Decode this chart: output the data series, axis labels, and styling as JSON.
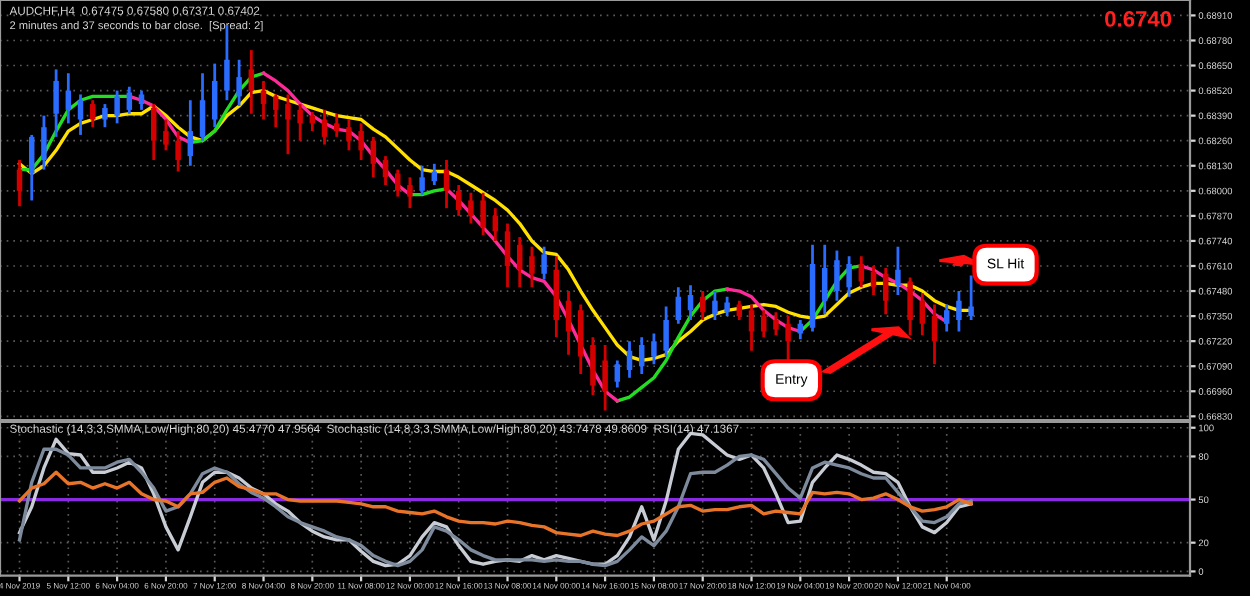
{
  "chart_data": [
    {
      "type": "candlestick",
      "title": "AUDCHF,H4  0.67475 0.67580 0.67371 0.67402",
      "subtitle": "2 minutes and 37 seconds to bar close.  [Spread: 2]",
      "annotations": [
        "0.6740",
        "Entry",
        "SL Hit"
      ],
      "categories": [
        null,
        null,
        null,
        null,
        null,
        null,
        null,
        null,
        null,
        null,
        null,
        null,
        null,
        null,
        null,
        null,
        null,
        null,
        null,
        null,
        null,
        null,
        null,
        null,
        null,
        null,
        null,
        null,
        null,
        null,
        null,
        null,
        null,
        null,
        null,
        null,
        null,
        null,
        null,
        null,
        null,
        null,
        null,
        null,
        null,
        null,
        null,
        null,
        null,
        null,
        null,
        null,
        null,
        null,
        null,
        null,
        null,
        null,
        null,
        null,
        null,
        null,
        null,
        null,
        null,
        null,
        null,
        null,
        null,
        null,
        null,
        null,
        null,
        null,
        null,
        null,
        null,
        null,
        null
      ],
      "ohlc": [
        [
          0.6811,
          0.6816,
          0.6792,
          0.68
        ],
        [
          0.6809,
          0.6829,
          0.6795,
          0.6828
        ],
        [
          0.6816,
          0.6839,
          0.6811,
          0.6833
        ],
        [
          0.684,
          0.6863,
          0.6828,
          0.6857
        ],
        [
          0.6842,
          0.6861,
          0.6835,
          0.6852
        ],
        [
          0.6837,
          0.685,
          0.6829,
          0.6847
        ],
        [
          0.6845,
          0.6847,
          0.6833,
          0.6837
        ],
        [
          0.6837,
          0.6845,
          0.6833,
          0.6843
        ],
        [
          0.6839,
          0.6852,
          0.6835,
          0.6849
        ],
        [
          0.6842,
          0.6854,
          0.684,
          0.6851
        ],
        [
          0.6845,
          0.6852,
          0.6842,
          0.685
        ],
        [
          0.6843,
          0.6845,
          0.6816,
          0.6826
        ],
        [
          0.6831,
          0.6837,
          0.6821,
          0.6824
        ],
        [
          0.6826,
          0.6831,
          0.681,
          0.6816
        ],
        [
          0.6818,
          0.6847,
          0.6813,
          0.6831
        ],
        [
          0.6828,
          0.6861,
          0.6826,
          0.6847
        ],
        [
          0.6837,
          0.6866,
          0.6833,
          0.6857
        ],
        [
          0.6852,
          0.6886,
          0.6847,
          0.6868
        ],
        [
          0.6849,
          0.6868,
          0.6844,
          0.6859
        ],
        [
          0.6863,
          0.6873,
          0.684,
          0.6852
        ],
        [
          0.6852,
          0.6857,
          0.6837,
          0.6845
        ],
        [
          0.6849,
          0.685,
          0.6833,
          0.6842
        ],
        [
          0.6845,
          0.685,
          0.6819,
          0.6837
        ],
        [
          0.6842,
          0.6845,
          0.6826,
          0.6835
        ],
        [
          0.6839,
          0.6841,
          0.6831,
          0.6835
        ],
        [
          0.6837,
          0.6842,
          0.6824,
          0.6828
        ],
        [
          0.6835,
          0.684,
          0.6828,
          0.6831
        ],
        [
          0.6833,
          0.6837,
          0.6821,
          0.6826
        ],
        [
          0.6831,
          0.6835,
          0.6816,
          0.6821
        ],
        [
          0.6826,
          0.6828,
          0.6807,
          0.6814
        ],
        [
          0.6816,
          0.6818,
          0.6803,
          0.6807
        ],
        [
          0.6809,
          0.6811,
          0.6797,
          0.68
        ],
        [
          0.6803,
          0.6807,
          0.6791,
          0.6797
        ],
        [
          0.68,
          0.6813,
          0.6798,
          0.6807
        ],
        [
          0.6805,
          0.6814,
          0.6803,
          0.681
        ],
        [
          0.6811,
          0.6816,
          0.6791,
          0.68
        ],
        [
          0.68,
          0.6803,
          0.6787,
          0.679
        ],
        [
          0.6795,
          0.6799,
          0.6783,
          0.6787
        ],
        [
          0.6795,
          0.6799,
          0.6777,
          0.6781
        ],
        [
          0.6787,
          0.6791,
          0.6774,
          0.6779
        ],
        [
          0.6779,
          0.6783,
          0.675,
          0.6761
        ],
        [
          0.6772,
          0.6776,
          0.675,
          0.6759
        ],
        [
          0.6766,
          0.6771,
          0.675,
          0.6757
        ],
        [
          0.6757,
          0.6771,
          0.6754,
          0.6767
        ],
        [
          0.6759,
          0.6766,
          0.6724,
          0.6733
        ],
        [
          0.6743,
          0.6748,
          0.6715,
          0.6727
        ],
        [
          0.6738,
          0.6741,
          0.6705,
          0.6714
        ],
        [
          0.672,
          0.6724,
          0.6694,
          0.6699
        ],
        [
          0.6712,
          0.672,
          0.6686,
          0.6696
        ],
        [
          0.6701,
          0.6712,
          0.6698,
          0.671
        ],
        [
          0.6707,
          0.6722,
          0.6703,
          0.6717
        ],
        [
          0.6709,
          0.6724,
          0.6705,
          0.672
        ],
        [
          0.6714,
          0.6726,
          0.671,
          0.6722
        ],
        [
          0.6717,
          0.674,
          0.6714,
          0.6733
        ],
        [
          0.6733,
          0.675,
          0.6731,
          0.6745
        ],
        [
          0.6738,
          0.6751,
          0.6733,
          0.6746
        ],
        [
          0.6745,
          0.6748,
          0.6733,
          0.6737
        ],
        [
          0.6736,
          0.6748,
          0.6733,
          0.6743
        ],
        [
          0.6737,
          0.6745,
          0.6735,
          0.6742
        ],
        [
          0.6741,
          0.6743,
          0.6733,
          0.6735
        ],
        [
          0.6738,
          0.6741,
          0.6717,
          0.6727
        ],
        [
          0.6735,
          0.6738,
          0.6724,
          0.6727
        ],
        [
          0.6733,
          0.6737,
          0.6725,
          0.6728
        ],
        [
          0.6731,
          0.6735,
          0.6712,
          0.6722
        ],
        [
          0.6726,
          0.6733,
          0.6723,
          0.6731
        ],
        [
          0.6729,
          0.6772,
          0.6727,
          0.6762
        ],
        [
          0.6743,
          0.6772,
          0.6736,
          0.676
        ],
        [
          0.6748,
          0.6769,
          0.6743,
          0.6764
        ],
        [
          0.675,
          0.6766,
          0.6745,
          0.6762
        ],
        [
          0.6762,
          0.6766,
          0.675,
          0.6753
        ],
        [
          0.6758,
          0.6761,
          0.6746,
          0.675
        ],
        [
          0.6757,
          0.676,
          0.6736,
          0.6743
        ],
        [
          0.6751,
          0.6771,
          0.6746,
          0.6759
        ],
        [
          0.6753,
          0.6755,
          0.6725,
          0.6733
        ],
        [
          0.6743,
          0.6747,
          0.6725,
          0.6731
        ],
        [
          0.6735,
          0.6741,
          0.671,
          0.6722
        ],
        [
          0.6731,
          0.6741,
          0.6727,
          0.6738
        ],
        [
          0.6733,
          0.6748,
          0.6727,
          0.6743
        ],
        [
          0.6735,
          0.6756,
          0.6733,
          0.674
        ]
      ],
      "colors": [
        "#d40000",
        "#2a6cff",
        "#2a6cff",
        "#2a6cff",
        "#2a6cff",
        "#2a6cff",
        "#d40000",
        "#2a6cff",
        "#2a6cff",
        "#2a6cff",
        "#2a6cff",
        "#d40000",
        "#d40000",
        "#d40000",
        "#2a6cff",
        "#2a6cff",
        "#2a6cff",
        "#2a6cff",
        "#2a6cff",
        "#d40000",
        "#d40000",
        "#d40000",
        "#d40000",
        "#d40000",
        "#d40000",
        "#d40000",
        "#d40000",
        "#d40000",
        "#d40000",
        "#d40000",
        "#d40000",
        "#d40000",
        "#d40000",
        "#2a6cff",
        "#2a6cff",
        "#d40000",
        "#d40000",
        "#d40000",
        "#d40000",
        "#d40000",
        "#d40000",
        "#d40000",
        "#d40000",
        "#2a6cff",
        "#d40000",
        "#d40000",
        "#d40000",
        "#d40000",
        "#d40000",
        "#2a6cff",
        "#2a6cff",
        "#2a6cff",
        "#2a6cff",
        "#2a6cff",
        "#2a6cff",
        "#2a6cff",
        "#d40000",
        "#2a6cff",
        "#2a6cff",
        "#d40000",
        "#d40000",
        "#d40000",
        "#d40000",
        "#d40000",
        "#2a6cff",
        "#2a6cff",
        "#2a6cff",
        "#2a6cff",
        "#2a6cff",
        "#d40000",
        "#d40000",
        "#d40000",
        "#2a6cff",
        "#d40000",
        "#d40000",
        "#d40000",
        "#2a6cff",
        "#2a6cff",
        "#2a6cff"
      ],
      "series": [
        {
          "type": "line",
          "color": "#ffe000",
          "values": [
            0.6814,
            0.6809,
            0.6813,
            0.6821,
            0.6831,
            0.6835,
            0.6837,
            0.6839,
            0.6839,
            0.684,
            0.684,
            0.6844,
            0.6839,
            0.6833,
            0.6828,
            0.6826,
            0.6831,
            0.6839,
            0.6844,
            0.6851,
            0.6852,
            0.6849,
            0.6847,
            0.6845,
            0.6843,
            0.6841,
            0.6839,
            0.6838,
            0.6837,
            0.6832,
            0.6828,
            0.6822,
            0.6816,
            0.6811,
            0.681,
            0.681,
            0.6807,
            0.6803,
            0.6799,
            0.6795,
            0.679,
            0.6783,
            0.6774,
            0.6768,
            0.6767,
            0.6759,
            0.6748,
            0.6738,
            0.6729,
            0.672,
            0.6714,
            0.6712,
            0.6713,
            0.6715,
            0.6722,
            0.6727,
            0.6733,
            0.6736,
            0.6738,
            0.6739,
            0.674,
            0.6741,
            0.674,
            0.6737,
            0.6735,
            0.6734,
            0.6735,
            0.6741,
            0.6747,
            0.675,
            0.6752,
            0.6752,
            0.6751,
            0.6751,
            0.6748,
            0.6743,
            0.674,
            0.6738,
            0.6738
          ]
        },
        {
          "type": "line",
          "color": "#22dd22",
          "values": [
            0.6811,
            0.6811,
            0.6819,
            0.6831,
            0.6842,
            0.6847,
            0.6849,
            0.6849,
            0.6849,
            0.6849,
            null,
            null,
            null,
            null,
            0.6825,
            0.6826,
            0.6831,
            0.6842,
            0.6852,
            0.6859,
            0.6861,
            null,
            null,
            null,
            null,
            null,
            null,
            null,
            null,
            null,
            null,
            null,
            0.6798,
            0.6798,
            0.68,
            0.6801,
            null,
            null,
            null,
            null,
            null,
            null,
            null,
            null,
            null,
            null,
            null,
            null,
            null,
            0.6691,
            0.6693,
            0.6698,
            0.6703,
            0.6712,
            0.6724,
            0.6735,
            0.6743,
            0.6748,
            0.6749,
            null,
            null,
            null,
            null,
            null,
            0.6727,
            0.6733,
            0.6743,
            0.6753,
            0.676,
            0.6761,
            null,
            null,
            null,
            null,
            null,
            null,
            null,
            null,
            null
          ]
        },
        {
          "type": "line",
          "color": "#ff2a9a",
          "values": [
            null,
            null,
            null,
            null,
            null,
            null,
            null,
            null,
            null,
            0.6849,
            0.6847,
            0.6844,
            0.6837,
            0.6828,
            0.6825,
            null,
            null,
            null,
            null,
            null,
            0.6861,
            0.6857,
            0.6852,
            0.6845,
            0.6839,
            0.6835,
            0.6832,
            0.6831,
            0.6826,
            0.6818,
            0.6811,
            0.6803,
            0.6798,
            null,
            null,
            0.6801,
            0.6795,
            0.6788,
            0.6781,
            0.6774,
            0.6766,
            0.6759,
            0.6755,
            0.6753,
            0.6745,
            0.6733,
            0.672,
            0.6707,
            0.6696,
            0.6691,
            null,
            null,
            null,
            null,
            null,
            null,
            null,
            null,
            0.6749,
            0.6748,
            0.6745,
            0.6738,
            0.6733,
            0.6729,
            0.6727,
            null,
            null,
            null,
            null,
            0.6761,
            0.6759,
            0.6755,
            0.6752,
            0.6748,
            0.6743,
            0.6736,
            0.6732,
            null,
            null
          ]
        }
      ],
      "ylim": [
        0.6681,
        0.6899
      ],
      "yticks": [
        {
          "value": 0.6683,
          "label": "0.66830"
        },
        {
          "value": 0.6696,
          "label": "0.66960"
        },
        {
          "value": 0.6709,
          "label": "0.67090"
        },
        {
          "value": 0.6722,
          "label": "0.67220"
        },
        {
          "value": 0.6735,
          "label": "0.67350"
        },
        {
          "value": 0.6748,
          "label": "0.67480"
        },
        {
          "value": 0.6761,
          "label": "0.67610"
        },
        {
          "value": 0.6774,
          "label": "0.67740"
        },
        {
          "value": 0.6787,
          "label": "0.67870"
        },
        {
          "value": 0.68,
          "label": "0.68000"
        },
        {
          "value": 0.6813,
          "label": "0.68130"
        },
        {
          "value": 0.6826,
          "label": "0.68260"
        },
        {
          "value": 0.6839,
          "label": "0.68390"
        },
        {
          "value": 0.6852,
          "label": "0.68520"
        },
        {
          "value": 0.6865,
          "label": "0.68650"
        },
        {
          "value": 0.6878,
          "label": "0.68780"
        },
        {
          "value": 0.6891,
          "label": "0.68910"
        }
      ],
      "grid": true,
      "tick_labels": "y"
    },
    {
      "type": "line",
      "title": "Stochastic (14,3,3,SMMA,Low/High,80,20) 45.4770 47.9564  Stochastic (14,8,3,3,SMMA,Low/High,80,20) 43.7478 49.8609  RSI(14) 47.1367",
      "categories": [
        "4 Nov 2019",
        null,
        null,
        null,
        "5 Nov 12:00",
        null,
        null,
        null,
        "6 Nov 04:00",
        null,
        null,
        null,
        "6 Nov 20:00",
        null,
        null,
        null,
        "7 Nov 12:00",
        null,
        null,
        null,
        "8 Nov 04:00",
        null,
        null,
        null,
        "8 Nov 20:00",
        null,
        null,
        null,
        "11 Nov 08:00",
        null,
        null,
        null,
        "12 Nov 00:00",
        null,
        null,
        null,
        "12 Nov 16:00",
        null,
        null,
        null,
        "13 Nov 08:00",
        null,
        null,
        null,
        "14 Nov 00:00",
        null,
        null,
        null,
        "14 Nov 16:00",
        null,
        null,
        null,
        "15 Nov 08:00",
        null,
        null,
        null,
        "17 Nov 20:00",
        null,
        null,
        null,
        "18 Nov 12:00",
        null,
        null,
        null,
        "19 Nov 04:00",
        null,
        null,
        null,
        "19 Nov 20:00",
        null,
        null,
        null,
        "20 Nov 12:00",
        null,
        null,
        null,
        "21 Nov 04:00",
        null,
        null
      ],
      "series": [
        {
          "color": "#c8ccd4",
          "values": [
            27,
            45,
            72,
            92,
            82,
            81,
            69,
            69,
            72,
            76,
            72,
            54,
            31,
            15,
            38,
            62,
            69,
            69,
            65,
            58,
            54,
            47,
            42,
            34,
            28,
            24,
            22,
            22,
            14,
            7,
            4,
            5,
            11,
            24,
            34,
            31,
            18,
            7,
            5,
            7,
            8,
            7,
            11,
            8,
            11,
            9,
            7,
            5,
            5,
            11,
            24,
            45,
            22,
            49,
            85,
            96,
            95,
            88,
            81,
            78,
            81,
            72,
            54,
            34,
            35,
            62,
            72,
            81,
            78,
            74,
            69,
            68,
            62,
            45,
            31,
            27,
            34,
            45,
            47
          ]
        },
        {
          "color": "#7d8a9c",
          "values": [
            22,
            62,
            85,
            85,
            81,
            72,
            72,
            72,
            76,
            78,
            69,
            58,
            42,
            45,
            54,
            68,
            72,
            69,
            61,
            55,
            51,
            45,
            38,
            34,
            31,
            28,
            24,
            22,
            18,
            11,
            7,
            4,
            7,
            15,
            31,
            28,
            22,
            15,
            11,
            8,
            8,
            8,
            8,
            7,
            8,
            7,
            7,
            5,
            4,
            7,
            15,
            24,
            18,
            28,
            45,
            68,
            69,
            69,
            74,
            80,
            81,
            78,
            68,
            58,
            51,
            72,
            76,
            74,
            72,
            68,
            65,
            65,
            55,
            45,
            35,
            34,
            38,
            47,
            49
          ]
        },
        {
          "color": "#e8742a",
          "values": [
            49,
            58,
            61,
            69,
            61,
            62,
            58,
            61,
            58,
            62,
            54,
            50,
            49,
            45,
            54,
            55,
            62,
            65,
            59,
            57,
            54,
            54,
            50,
            49,
            49,
            49,
            49,
            48,
            47,
            45,
            45,
            42,
            41,
            40,
            42,
            38,
            35,
            34,
            34,
            33,
            35,
            34,
            32,
            31,
            27,
            26,
            25,
            28,
            26,
            25,
            28,
            33,
            35,
            40,
            45,
            46,
            42,
            43,
            43,
            45,
            46,
            40,
            42,
            41,
            40,
            55,
            54,
            55,
            54,
            50,
            51,
            54,
            50,
            45,
            42,
            43,
            45,
            50,
            47
          ]
        }
      ],
      "ref_lines": [
        {
          "axis": "y",
          "value": 50,
          "color": "#8a2be2"
        }
      ],
      "ylim": [
        -3,
        104
      ],
      "yticks": [
        0,
        20,
        50,
        80,
        100
      ],
      "grid": true
    }
  ]
}
